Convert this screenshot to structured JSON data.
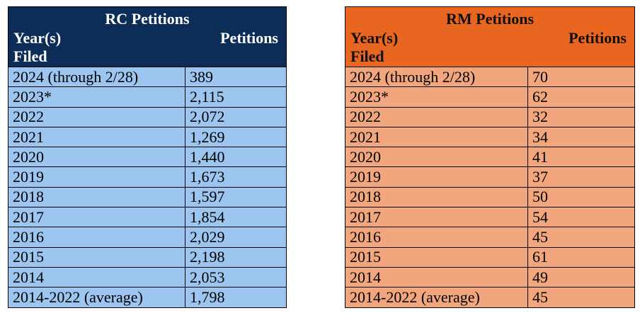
{
  "rc": {
    "title": "RC Petitions",
    "col_year_line1": "Year(s)",
    "col_year_line2": "Filed",
    "col_petitions": "Petitions",
    "rows": [
      {
        "year": "2024 (through 2/28)",
        "value": "389"
      },
      {
        "year": "2023*",
        "value": "2,115"
      },
      {
        "year": "2022",
        "value": "2,072"
      },
      {
        "year": "2021",
        "value": "1,269"
      },
      {
        "year": "2020",
        "value": "1,440"
      },
      {
        "year": "2019",
        "value": "1,673"
      },
      {
        "year": "2018",
        "value": "1,597"
      },
      {
        "year": "2017",
        "value": "1,854"
      },
      {
        "year": "2016",
        "value": "2,029"
      },
      {
        "year": "2015",
        "value": "2,198"
      },
      {
        "year": "2014",
        "value": "2,053"
      },
      {
        "year": "2014-2022 (average)",
        "value": "1,798"
      }
    ]
  },
  "rm": {
    "title": "RM Petitions",
    "col_year_line1": "Year(s)",
    "col_year_line2": "Filed",
    "col_petitions": "Petitions",
    "rows": [
      {
        "year": "2024 (through 2/28)",
        "value": "70"
      },
      {
        "year": "2023*",
        "value": "62"
      },
      {
        "year": "2022",
        "value": "32"
      },
      {
        "year": "2021",
        "value": "34"
      },
      {
        "year": "2020",
        "value": "41"
      },
      {
        "year": "2019",
        "value": "37"
      },
      {
        "year": "2018",
        "value": "50"
      },
      {
        "year": "2017",
        "value": "54"
      },
      {
        "year": "2016",
        "value": "45"
      },
      {
        "year": "2015",
        "value": "61"
      },
      {
        "year": "2014",
        "value": "49"
      },
      {
        "year": "2014-2022 (average)",
        "value": "45"
      }
    ]
  },
  "colors": {
    "rc_header": "#0c2d57",
    "rc_rows": "#9cc5ef",
    "rm_header": "#e8661f",
    "rm_rows": "#f2a67e"
  }
}
